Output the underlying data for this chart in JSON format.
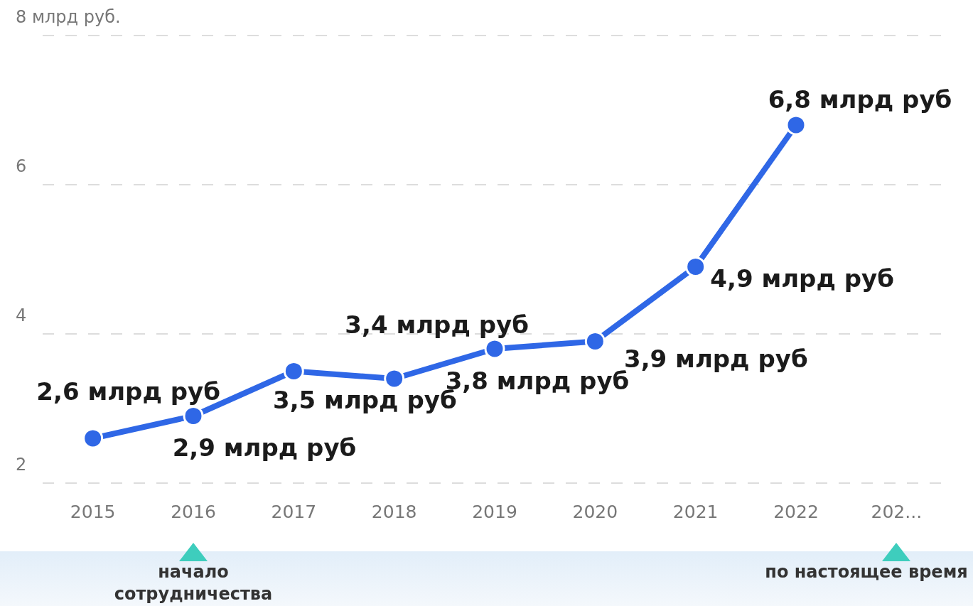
{
  "chart_data": {
    "type": "line",
    "categories": [
      "2015",
      "2016",
      "2017",
      "2018",
      "2019",
      "2020",
      "2021",
      "2022",
      "202..."
    ],
    "series": [
      {
        "color": "#2f67e6",
        "values": [
          2.6,
          2.9,
          3.5,
          3.4,
          3.8,
          3.9,
          4.9,
          6.8,
          null
        ],
        "value_labels": [
          "2,6 млрд руб",
          "2,9 млрд руб",
          "3,5 млрд руб",
          "3,4 млрд руб",
          "3,8 млрд руб",
          "3,9 млрд руб",
          "4,9 млрд руб",
          "6,8 млрд руб",
          null
        ]
      }
    ],
    "ylim": [
      2,
      8
    ],
    "yticks": [
      2,
      4,
      6,
      {
        "value": 8,
        "label": "8 млрд руб."
      }
    ],
    "grid": "y",
    "marker": "circle",
    "line_style": "solid",
    "annotations": [
      "начало сотрудничества",
      "по настоящее время"
    ]
  }
}
